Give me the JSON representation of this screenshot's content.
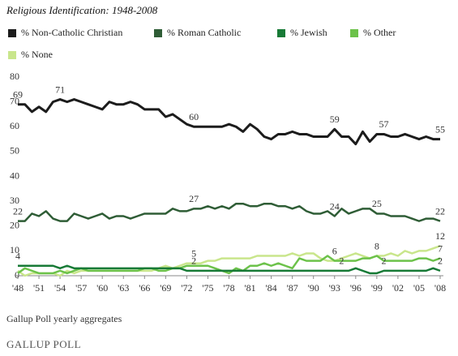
{
  "chart_data": {
    "type": "line",
    "title": "Religious Identification: 1948-2008",
    "footnote": "Gallup Poll yearly aggregates",
    "logo": "GALLUP POLL",
    "x": [
      1948,
      1949,
      1950,
      1951,
      1952,
      1953,
      1954,
      1955,
      1956,
      1957,
      1958,
      1959,
      1960,
      1961,
      1962,
      1963,
      1964,
      1965,
      1966,
      1967,
      1968,
      1969,
      1970,
      1971,
      1972,
      1973,
      1974,
      1975,
      1976,
      1977,
      1978,
      1979,
      1980,
      1981,
      1982,
      1983,
      1984,
      1985,
      1986,
      1987,
      1988,
      1989,
      1990,
      1991,
      1992,
      1993,
      1994,
      1995,
      1996,
      1997,
      1998,
      1999,
      2000,
      2001,
      2002,
      2003,
      2004,
      2005,
      2006,
      2007,
      2008
    ],
    "series": [
      {
        "name": "% Non-Catholic Christian",
        "color": "#1c1c1c",
        "values": [
          69,
          69,
          66,
          68,
          66,
          70,
          71,
          70,
          71,
          70,
          69,
          68,
          67,
          70,
          69,
          69,
          70,
          69,
          67,
          67,
          67,
          64,
          65,
          63,
          61,
          60,
          60,
          60,
          60,
          60,
          61,
          60,
          58,
          61,
          59,
          56,
          55,
          57,
          57,
          58,
          57,
          57,
          56,
          56,
          56,
          59,
          56,
          56,
          53,
          58,
          54,
          57,
          57,
          56,
          56,
          57,
          56,
          55,
          56,
          55,
          55
        ]
      },
      {
        "name": "% Roman Catholic",
        "color": "#2f5d36",
        "values": [
          22,
          22,
          25,
          24,
          26,
          23,
          22,
          22,
          25,
          24,
          23,
          24,
          25,
          23,
          24,
          24,
          23,
          24,
          25,
          25,
          25,
          25,
          27,
          26,
          26,
          27,
          27,
          28,
          27,
          28,
          27,
          29,
          29,
          28,
          28,
          29,
          29,
          28,
          28,
          27,
          28,
          26,
          25,
          25,
          26,
          24,
          27,
          25,
          26,
          27,
          27,
          25,
          25,
          24,
          24,
          24,
          23,
          22,
          23,
          23,
          22
        ]
      },
      {
        "name": "% Jewish",
        "color": "#177a36",
        "values": [
          4,
          4,
          4,
          4,
          4,
          4,
          3,
          4,
          3,
          3,
          3,
          3,
          3,
          3,
          3,
          3,
          3,
          3,
          3,
          3,
          3,
          3,
          3,
          3,
          2,
          2,
          2,
          2,
          2,
          2,
          2,
          2,
          2,
          2,
          2,
          2,
          2,
          2,
          2,
          2,
          2,
          2,
          2,
          2,
          2,
          2,
          2,
          2,
          3,
          2,
          1,
          1,
          2,
          2,
          2,
          2,
          2,
          2,
          2,
          3,
          2
        ]
      },
      {
        "name": "% Other",
        "color": "#6cc24a",
        "values": [
          1,
          3,
          2,
          1,
          1,
          1,
          2,
          1,
          2,
          3,
          2,
          2,
          2,
          2,
          2,
          2,
          2,
          2,
          3,
          3,
          2,
          2,
          3,
          3,
          4,
          4,
          4,
          4,
          3,
          2,
          1,
          3,
          2,
          4,
          4,
          5,
          4,
          5,
          4,
          3,
          7,
          6,
          6,
          6,
          8,
          6,
          6,
          6,
          6,
          7,
          7,
          8,
          6,
          6,
          6,
          6,
          6,
          7,
          7,
          6,
          7
        ]
      },
      {
        "name": "% None",
        "color": "#c9e68c",
        "values": [
          2,
          0,
          1,
          1,
          1,
          1,
          0,
          2,
          1,
          2,
          2,
          2,
          2,
          2,
          2,
          2,
          2,
          2,
          2,
          2,
          3,
          4,
          3,
          4,
          5,
          5,
          5,
          6,
          6,
          7,
          7,
          7,
          7,
          7,
          8,
          8,
          8,
          8,
          8,
          9,
          8,
          9,
          9,
          7,
          6,
          6,
          7,
          8,
          9,
          8,
          7,
          8,
          8,
          9,
          8,
          10,
          9,
          10,
          10,
          11,
          12
        ]
      }
    ],
    "data_labels": [
      {
        "x": 1948,
        "value": 69
      },
      {
        "x": 1954,
        "value": 71
      },
      {
        "x": 1973,
        "value": 60
      },
      {
        "x": 1993,
        "value": 59
      },
      {
        "x": 2000,
        "value": 57
      },
      {
        "x": 2008,
        "value": 55
      },
      {
        "x": 1948,
        "value": 22
      },
      {
        "x": 1973,
        "value": 27
      },
      {
        "x": 1993,
        "value": 24
      },
      {
        "x": 1999,
        "value": 25
      },
      {
        "x": 2008,
        "value": 22
      },
      {
        "x": 1948,
        "value": 4
      },
      {
        "x": 1973,
        "value": 2
      },
      {
        "x": 1994,
        "value": 2
      },
      {
        "x": 2000,
        "value": 2
      },
      {
        "x": 2008,
        "value": 2
      },
      {
        "x": 1973,
        "value": 5
      },
      {
        "x": 1993,
        "value": 6
      },
      {
        "x": 1999,
        "value": 8
      },
      {
        "x": 2008,
        "value": 12
      },
      {
        "x": 2008,
        "value": 7
      }
    ],
    "xlim": [
      1948,
      2008
    ],
    "xticks": [
      {
        "value": 1948,
        "label": "'48"
      },
      {
        "value": 1951,
        "label": "'51"
      },
      {
        "value": 1954,
        "label": "'54"
      },
      {
        "value": 1957,
        "label": "'57"
      },
      {
        "value": 1960,
        "label": "'60"
      },
      {
        "value": 1963,
        "label": "'63"
      },
      {
        "value": 1966,
        "label": "'66"
      },
      {
        "value": 1969,
        "label": "'69"
      },
      {
        "value": 1972,
        "label": "'72"
      },
      {
        "value": 1975,
        "label": "'75"
      },
      {
        "value": 1978,
        "label": "'78"
      },
      {
        "value": 1981,
        "label": "'81"
      },
      {
        "value": 1984,
        "label": "'84"
      },
      {
        "value": 1987,
        "label": "'87"
      },
      {
        "value": 1990,
        "label": "'90"
      },
      {
        "value": 1993,
        "label": "'93"
      },
      {
        "value": 1996,
        "label": "'96"
      },
      {
        "value": 1999,
        "label": "'99"
      },
      {
        "value": 2002,
        "label": "'02"
      },
      {
        "value": 2005,
        "label": "'05"
      },
      {
        "value": 2008,
        "label": "'08"
      }
    ],
    "ylim": [
      0,
      80
    ],
    "yticks": [
      0,
      10,
      20,
      30,
      40,
      50,
      60,
      70,
      80
    ],
    "grid": false,
    "legend": "top"
  }
}
